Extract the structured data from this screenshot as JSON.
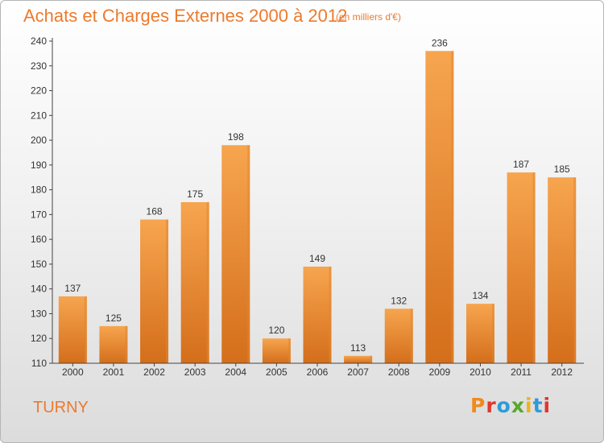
{
  "header": {
    "title": "Achats et Charges Externes 2000 à 2012",
    "unit": "(en milliers d'€)"
  },
  "footer": {
    "commune": "TURNY",
    "brand_letters": [
      "P",
      "r",
      "o",
      "x",
      "i",
      "t",
      "i"
    ],
    "brand_colors": [
      "#f08a1d",
      "#e5352b",
      "#2f9bd8",
      "#58a82b",
      "#f0b21d",
      "#2f9bd8",
      "#e5352b"
    ]
  },
  "colors": {
    "bar_light": "#f7a54f",
    "bar_dark": "#d46e1b",
    "bar_side": "#e08630",
    "accent": "#ec7a2e"
  },
  "chart_data": {
    "type": "bar",
    "title": "Achats et Charges Externes 2000 à 2012",
    "subtitle": "(en milliers d'€)",
    "categories": [
      "2000",
      "2001",
      "2002",
      "2003",
      "2004",
      "2005",
      "2006",
      "2007",
      "2008",
      "2009",
      "2010",
      "2011",
      "2012"
    ],
    "values": [
      137,
      125,
      168,
      175,
      198,
      120,
      149,
      113,
      132,
      236,
      134,
      187,
      185
    ],
    "ylim": [
      110,
      240
    ],
    "yticks": [
      110,
      120,
      130,
      140,
      150,
      160,
      170,
      180,
      190,
      200,
      210,
      220,
      230,
      240
    ],
    "grid": false,
    "legend": "none"
  }
}
